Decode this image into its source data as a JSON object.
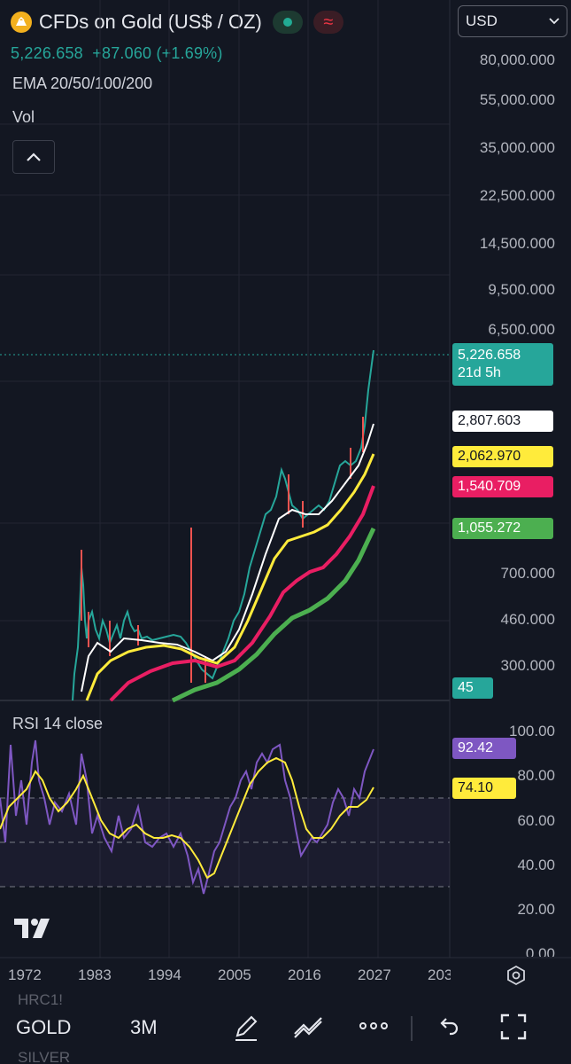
{
  "header": {
    "symbol_title": "CFDs on Gold (US$ / OZ)",
    "price_line": "5,226.658  +87.060 (+1.69%)",
    "indicator_ema": "EMA 20/50/100/200",
    "indicator_vol": "Vol",
    "currency": "USD"
  },
  "price_axis": {
    "labels": [
      "80,000.000",
      "55,000.000",
      "35,000.000",
      "22,500.000",
      "14,500.000",
      "9,500.000",
      "6,500.000",
      "700.000",
      "460.000",
      "300.000"
    ]
  },
  "price_tags": {
    "last_price": "5,226.658",
    "countdown": "21d 5h",
    "ema20": "2,807.603",
    "ema50": "2,062.970",
    "ema100": "1,540.709",
    "ema200": "1,055.272",
    "volume": "45"
  },
  "rsi": {
    "label": "RSI 14 close",
    "axis": [
      "100.00",
      "80.00",
      "60.00",
      "40.00",
      "20.00",
      "0.00"
    ],
    "value": "92.42",
    "ma_value": "74.10"
  },
  "time_axis": {
    "labels": [
      "1972",
      "1983",
      "1994",
      "2005",
      "2016",
      "2027",
      "203"
    ]
  },
  "toolbar": {
    "symbol": "GOLD",
    "interval": "3M",
    "above_symbol": "HRC1!",
    "below_symbol": "SILVER"
  },
  "colors": {
    "background": "#131722",
    "up": "#26a69a",
    "down": "#ef5350",
    "ema20": "#ffffff",
    "ema50": "#ffeb3b",
    "ema100": "#e91e63",
    "ema200": "#4caf50",
    "rsi": "#7e57c2"
  }
}
